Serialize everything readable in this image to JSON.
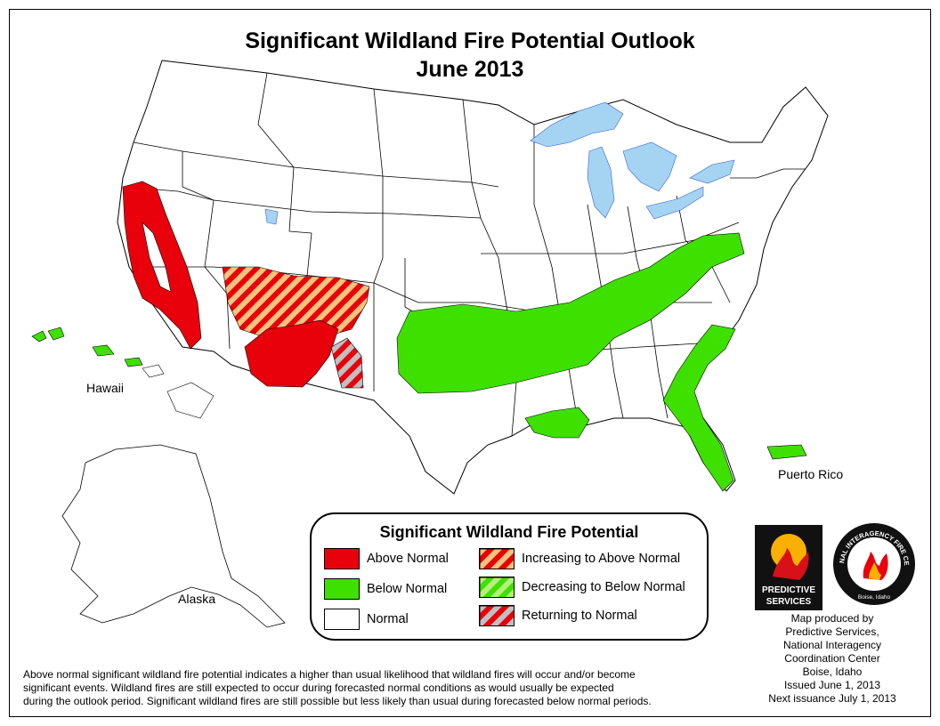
{
  "title": {
    "line1": "Significant Wildland Fire Potential Outlook",
    "line2": "June 2013"
  },
  "colors": {
    "above_normal": "#e8000b",
    "below_normal": "#3ee000",
    "normal": "#ffffff",
    "stripe_orange": "#f7c37d",
    "stripe_lightgreen": "#b6f07a",
    "stripe_gray": "#c0c0c0",
    "water": "#a4d4f2",
    "river": "#3a5fd8"
  },
  "map_labels": {
    "hawaii": "Hawaii",
    "alaska": "Alaska",
    "puerto_rico": "Puerto Rico"
  },
  "legend": {
    "title": "Significant Wildland Fire Potential",
    "items": [
      {
        "label": "Above Normal"
      },
      {
        "label": "Below Normal"
      },
      {
        "label": "Normal"
      },
      {
        "label": "Increasing to Above Normal"
      },
      {
        "label": "Decreasing to Below Normal"
      },
      {
        "label": "Returning to Normal"
      }
    ]
  },
  "logos": {
    "predictive_services": "PREDICTIVE SERVICES",
    "nifc_ring": "NATIONAL INTERAGENCY FIRE CENTER",
    "nifc_city": "Boise, Idaho"
  },
  "credits": {
    "line1": "Map produced by",
    "line2": "Predictive Services,",
    "line3": "National Interagency",
    "line4": "Coordination Center",
    "line5": "Boise, Idaho",
    "line6": "Issued June 1, 2013",
    "line7": "Next issuance July 1, 2013"
  },
  "footnote": {
    "line1": "Above normal significant wildland fire potential indicates a higher than usual likelihood that wildland fires will occur and/or become",
    "line2": "significant events.  Wildland fires are still expected to occur during forecasted normal conditions as would usually be expected",
    "line3": "during the outlook period.  Significant wildland fires are still possible but less likely than usual during forecasted below normal periods."
  }
}
